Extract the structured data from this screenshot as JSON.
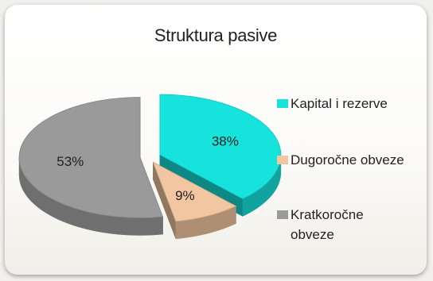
{
  "chart_data": {
    "type": "pie",
    "title": "Struktura pasive",
    "slices": [
      {
        "label": "Kapital i rezerve",
        "value": 38,
        "data_label": "38%",
        "color": "#17e3dd"
      },
      {
        "label": "Dugoročne obveze",
        "value": 9,
        "data_label": "9%",
        "color": "#f1c6a0"
      },
      {
        "label": "Kratkoročne obveze",
        "value": 53,
        "data_label": "53%",
        "color": "#9a9a9a"
      }
    ],
    "style": "3d-exploded",
    "legend_position": "right"
  }
}
